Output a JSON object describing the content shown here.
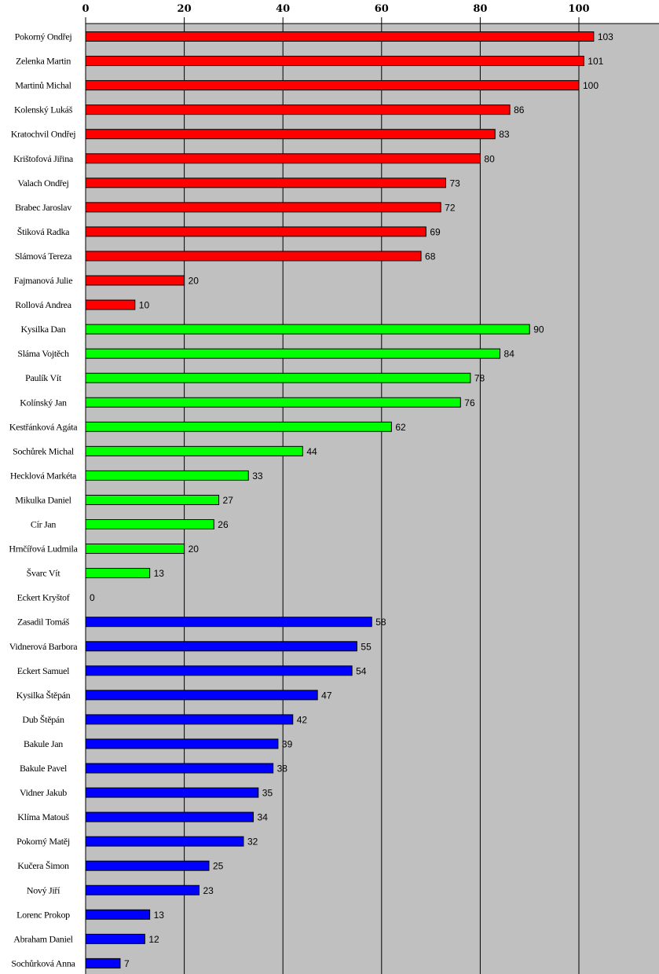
{
  "chart_data": {
    "type": "bar",
    "orientation": "horizontal",
    "title": "",
    "xlabel": "",
    "ylabel": "",
    "xlim": [
      0,
      116
    ],
    "x_ticks": [
      0,
      20,
      40,
      60,
      80,
      100
    ],
    "x_tick_labels": [
      "0",
      "20",
      "40",
      "60",
      "80",
      "100"
    ],
    "x_axis_position": "top",
    "grid": true,
    "background_color": "#c0c0c0",
    "categories": [
      "Pokorný Ondřej",
      "Zelenka Martin",
      "Martinů Michal",
      "Kolenský Lukáš",
      "Kratochvil Ondřej",
      "Krištofová Jiřina",
      "Valach Ondřej",
      "Brabec Jaroslav",
      "Štiková Radka",
      "Slámová Tereza",
      "Fajmanová Julie",
      "Rollová Andrea",
      "Kysilka Dan",
      "Sláma Vojtěch",
      "Paulík Vít",
      "Kolínský Jan",
      "Kestřánková Agáta",
      "Sochůrek Michal",
      "Hecklová Markéta",
      "Mikulka Daniel",
      "Cír Jan",
      "Hrnčířová Ludmila",
      "Švarc Vít",
      "Eckert Kryštof",
      "Zasadil Tomáš",
      "Vidnerová Barbora",
      "Eckert Samuel",
      "Kysilka Štěpán",
      "Dub Štěpán",
      "Bakule Jan",
      "Bakule Pavel",
      "Vidner Jakub",
      "Klíma Matouš",
      "Pokorný Matěj",
      "Kučera Šimon",
      "Nový Jiří",
      "Lorenc Prokop",
      "Abraham Daniel",
      "Sochůrková Anna"
    ],
    "values": [
      103,
      101,
      100,
      86,
      83,
      80,
      73,
      72,
      69,
      68,
      20,
      10,
      90,
      84,
      78,
      76,
      62,
      44,
      33,
      27,
      26,
      20,
      13,
      0,
      58,
      55,
      54,
      47,
      42,
      39,
      38,
      35,
      34,
      32,
      25,
      23,
      13,
      12,
      7
    ],
    "value_labels": [
      "103",
      "101",
      "100",
      "86",
      "83",
      "80",
      "73",
      "72",
      "69",
      "68",
      "20",
      "10",
      "90",
      "84",
      "78",
      "76",
      "62",
      "44",
      "33",
      "27",
      "26",
      "20",
      "13",
      "0",
      "58",
      "55",
      "54",
      "47",
      "42",
      "39",
      "38",
      "35",
      "34",
      "32",
      "25",
      "23",
      "13",
      "12",
      "7"
    ],
    "colors": [
      "#ff0000",
      "#ff0000",
      "#ff0000",
      "#ff0000",
      "#ff0000",
      "#ff0000",
      "#ff0000",
      "#ff0000",
      "#ff0000",
      "#ff0000",
      "#ff0000",
      "#ff0000",
      "#00ff00",
      "#00ff00",
      "#00ff00",
      "#00ff00",
      "#00ff00",
      "#00ff00",
      "#00ff00",
      "#00ff00",
      "#00ff00",
      "#00ff00",
      "#00ff00",
      "#00ff00",
      "#0000ff",
      "#0000ff",
      "#0000ff",
      "#0000ff",
      "#0000ff",
      "#0000ff",
      "#0000ff",
      "#0000ff",
      "#0000ff",
      "#0000ff",
      "#0000ff",
      "#0000ff",
      "#0000ff",
      "#0000ff",
      "#0000ff"
    ]
  }
}
